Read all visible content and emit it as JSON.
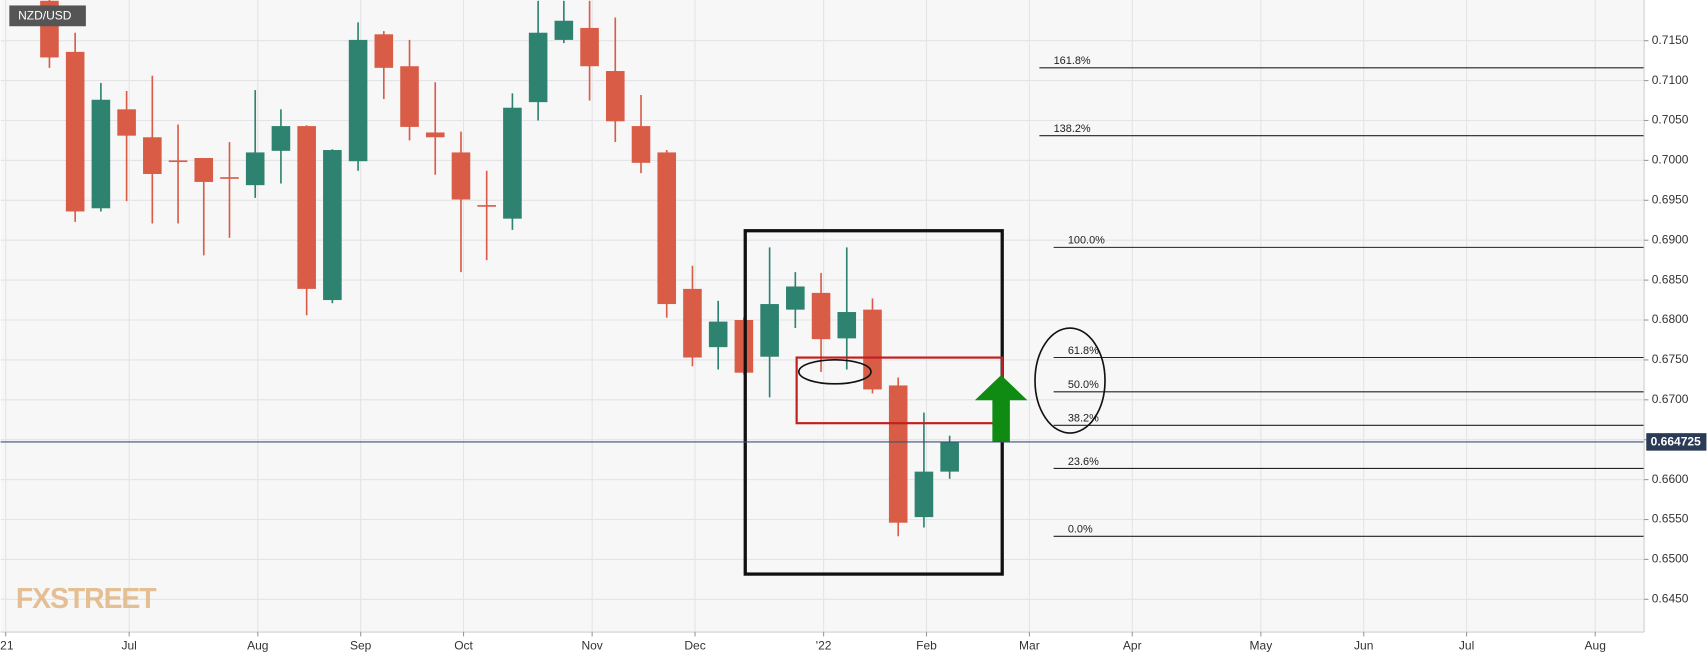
{
  "chart_data": {
    "type": "candlestick",
    "title": "NZD/USD",
    "watermark": "FXSTREET",
    "up_color": "#2e8270",
    "down_color": "#d95c47",
    "x": [
      0,
      1,
      2,
      3,
      4,
      5,
      6,
      7,
      8,
      9,
      10,
      11,
      12,
      13,
      14,
      15,
      16,
      17,
      18,
      19,
      20,
      21,
      22,
      23,
      24,
      25,
      26,
      27,
      28,
      29,
      30,
      31,
      32,
      33,
      34,
      35
    ],
    "open": [
      0.72,
      0.7136,
      0.694,
      0.7064,
      0.7029,
      0.7,
      0.7003,
      0.6979,
      0.6969,
      0.7012,
      0.7043,
      0.6825,
      0.6999,
      0.7158,
      0.7118,
      0.7035,
      0.701,
      0.6944,
      0.6927,
      0.7073,
      0.7151,
      0.7166,
      0.7112,
      0.7043,
      0.701,
      0.6839,
      0.6766,
      0.68,
      0.6754,
      0.6813,
      0.6834,
      0.6777,
      0.6813,
      0.6718,
      0.6553,
      0.661
    ],
    "high": [
      0.7215,
      0.716,
      0.7097,
      0.7087,
      0.7106,
      0.7045,
      0.7003,
      0.7023,
      0.7088,
      0.7064,
      0.7044,
      0.7014,
      0.7173,
      0.7162,
      0.7151,
      0.7098,
      0.7036,
      0.6987,
      0.7084,
      0.72,
      0.72,
      0.72,
      0.7179,
      0.7082,
      0.7013,
      0.6868,
      0.6824,
      0.6803,
      0.6891,
      0.686,
      0.6859,
      0.6891,
      0.6827,
      0.6728,
      0.6684,
      0.6655
    ],
    "low": [
      0.7116,
      0.6923,
      0.6936,
      0.6949,
      0.6921,
      0.6921,
      0.6881,
      0.6903,
      0.6953,
      0.6971,
      0.6806,
      0.6821,
      0.6987,
      0.7077,
      0.7025,
      0.6982,
      0.686,
      0.6875,
      0.6913,
      0.705,
      0.7147,
      0.7075,
      0.7023,
      0.6984,
      0.6803,
      0.6742,
      0.6738,
      0.6732,
      0.6703,
      0.679,
      0.6735,
      0.6738,
      0.6708,
      0.6529,
      0.654,
      0.6601
    ],
    "close": [
      0.7129,
      0.6936,
      0.7076,
      0.7031,
      0.6983,
      0.6999,
      0.6973,
      0.6977,
      0.701,
      0.7043,
      0.6839,
      0.7013,
      0.7151,
      0.7116,
      0.7042,
      0.7029,
      0.6951,
      0.6943,
      0.7066,
      0.716,
      0.7175,
      0.7118,
      0.7049,
      0.6997,
      0.682,
      0.6753,
      0.6798,
      0.6734,
      0.682,
      0.6842,
      0.6776,
      0.681,
      0.6713,
      0.6546,
      0.661,
      0.6647
    ],
    "xlim": [
      -1.9,
      62
    ],
    "xticks": [
      {
        "value": -1.7,
        "label": "'21"
      },
      {
        "value": 3.1,
        "label": "Jul"
      },
      {
        "value": 8.1,
        "label": "Aug"
      },
      {
        "value": 12.1,
        "label": "Sep"
      },
      {
        "value": 16.1,
        "label": "Oct"
      },
      {
        "value": 21.1,
        "label": "Nov"
      },
      {
        "value": 25.1,
        "label": "Dec"
      },
      {
        "value": 30.1,
        "label": "'22"
      },
      {
        "value": 34.1,
        "label": "Feb"
      },
      {
        "value": 38.1,
        "label": "Mar"
      },
      {
        "value": 42.1,
        "label": "Apr"
      },
      {
        "value": 47.1,
        "label": "May"
      },
      {
        "value": 51.1,
        "label": "Jun"
      },
      {
        "value": 55.1,
        "label": "Jul"
      },
      {
        "value": 60.1,
        "label": "Aug"
      }
    ],
    "ylim": [
      0.6409,
      0.7201
    ],
    "yticks": [
      {
        "value": 0.645,
        "label": "0.6450"
      },
      {
        "value": 0.65,
        "label": "0.6500"
      },
      {
        "value": 0.655,
        "label": "0.6550"
      },
      {
        "value": 0.66,
        "label": "0.6600"
      },
      {
        "value": 0.665,
        "label": "0.6650"
      },
      {
        "value": 0.67,
        "label": "0.6700"
      },
      {
        "value": 0.675,
        "label": "0.6750"
      },
      {
        "value": 0.68,
        "label": "0.6800"
      },
      {
        "value": 0.685,
        "label": "0.6850"
      },
      {
        "value": 0.69,
        "label": "0.6900"
      },
      {
        "value": 0.695,
        "label": "0.6950"
      },
      {
        "value": 0.7,
        "label": "0.7000"
      },
      {
        "value": 0.705,
        "label": "0.7050"
      },
      {
        "value": 0.71,
        "label": "0.7100"
      },
      {
        "value": 0.715,
        "label": "0.7150"
      }
    ],
    "grid": true,
    "last_price": 0.664725,
    "fib_levels": [
      {
        "label": "161.8%",
        "price": 0.7116
      },
      {
        "label": "138.2%",
        "price": 0.7031
      },
      {
        "label": "100.0%",
        "price": 0.6891
      },
      {
        "label": "61.8%",
        "price": 0.6753
      },
      {
        "label": "50.0%",
        "price": 0.671
      },
      {
        "label": "38.2%",
        "price": 0.6668
      },
      {
        "label": "23.6%",
        "price": 0.6614
      },
      {
        "label": "0.0%",
        "price": 0.6529
      }
    ]
  }
}
